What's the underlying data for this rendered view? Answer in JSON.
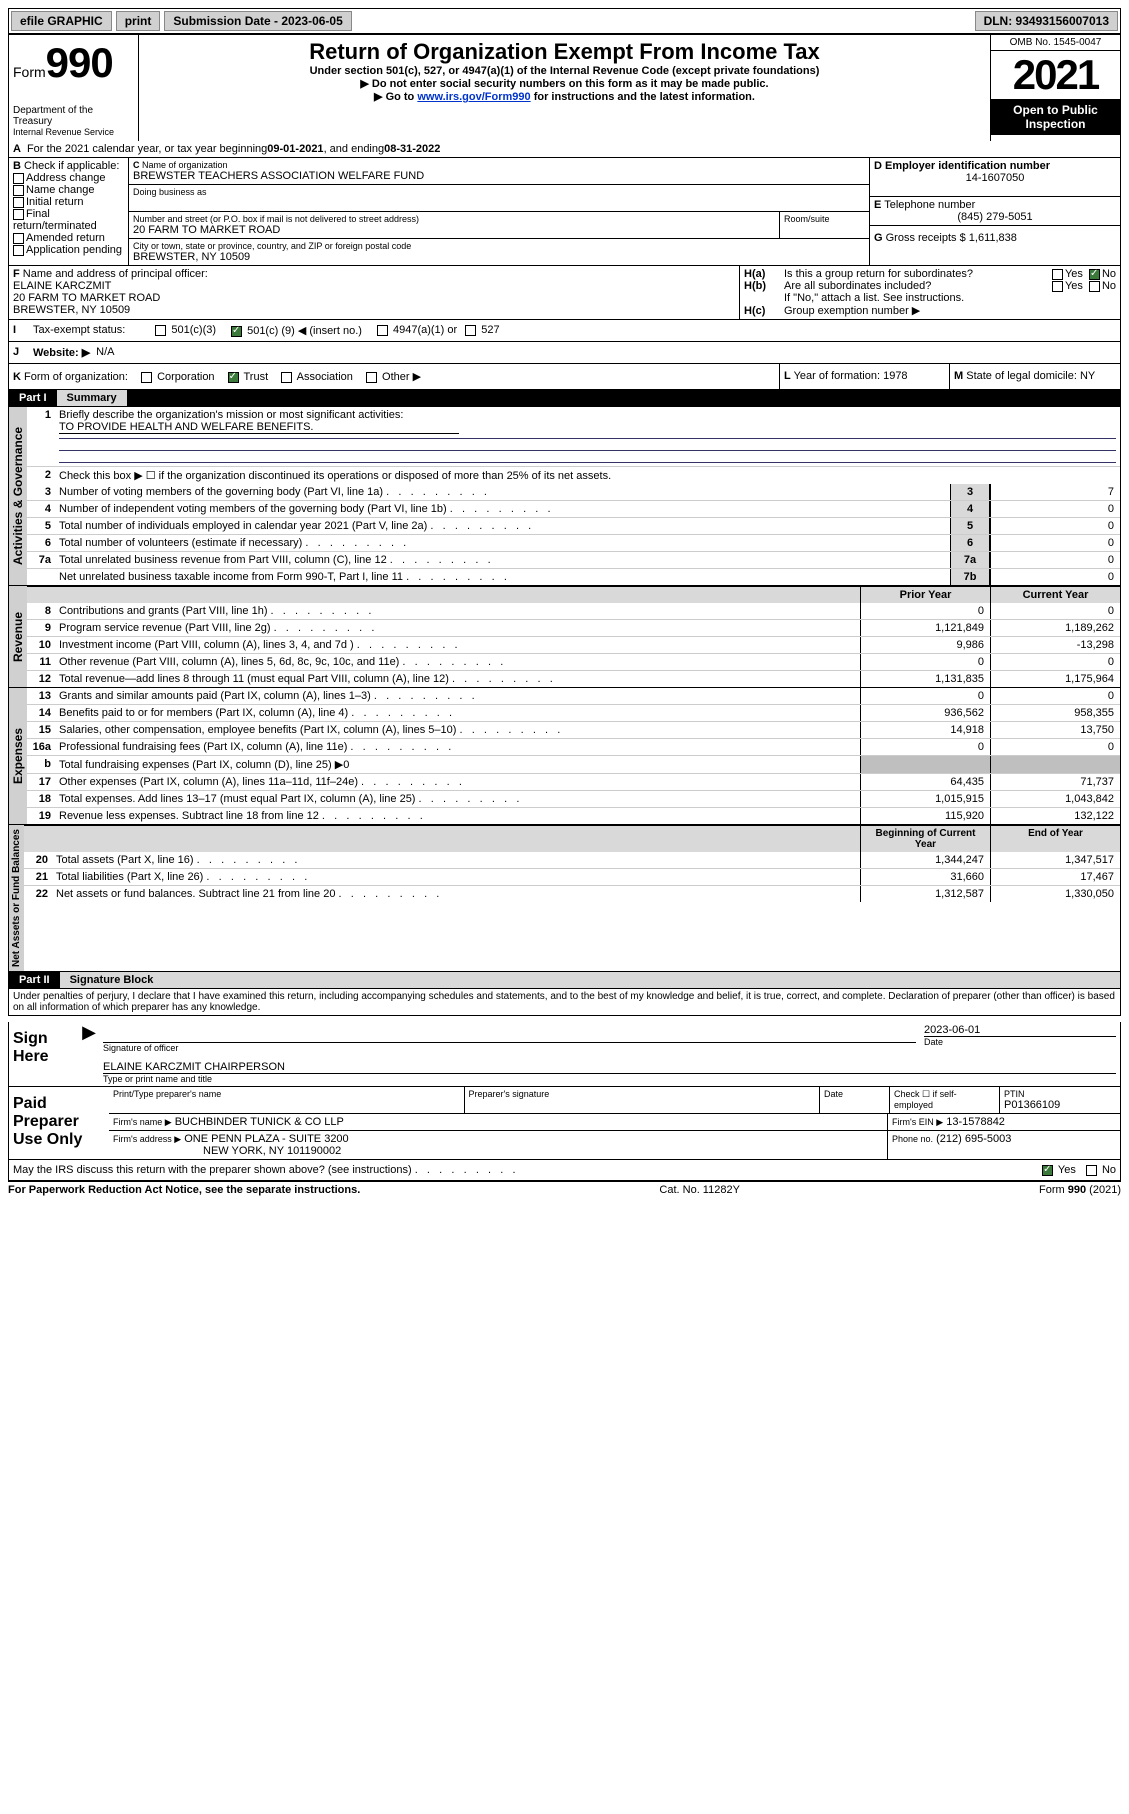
{
  "topbar": {
    "efile": "efile GRAPHIC",
    "print": "print",
    "subdate_label": "Submission Date - 2023-06-05",
    "dln_label": "DLN: 93493156007013"
  },
  "header": {
    "form_label": "Form",
    "form_number": "990",
    "dept": "Department of the Treasury",
    "irs": "Internal Revenue Service",
    "title": "Return of Organization Exempt From Income Tax",
    "sub1": "Under section 501(c), 527, or 4947(a)(1) of the Internal Revenue Code (except private foundations)",
    "sub2": "Do not enter social security numbers on this form as it may be made public.",
    "sub3_pre": "Go to ",
    "sub3_link": "www.irs.gov/Form990",
    "sub3_post": " for instructions and the latest information.",
    "omb": "OMB No. 1545-0047",
    "year": "2021",
    "inspect": "Open to Public Inspection"
  },
  "lineA": {
    "text_pre": "For the 2021 calendar year, or tax year beginning ",
    "begin": "09-01-2021",
    "mid": " , and ending ",
    "end": "08-31-2022"
  },
  "boxB": {
    "label": "Check if applicable:",
    "items": [
      "Address change",
      "Name change",
      "Initial return",
      "Final return/terminated",
      "Amended return",
      "Application pending"
    ]
  },
  "boxC": {
    "label": "Name of organization",
    "name": "BREWSTER TEACHERS ASSOCIATION WELFARE FUND",
    "dba_label": "Doing business as",
    "street_label": "Number and street (or P.O. box if mail is not delivered to street address)",
    "street": "20 FARM TO MARKET ROAD",
    "room_label": "Room/suite",
    "city_label": "City or town, state or province, country, and ZIP or foreign postal code",
    "city": "BREWSTER, NY  10509"
  },
  "boxD": {
    "label": "Employer identification number",
    "ein": "14-1607050"
  },
  "boxE": {
    "label": "Telephone number",
    "phone": "(845) 279-5051"
  },
  "boxG": {
    "label": "Gross receipts $",
    "amount": "1,611,838"
  },
  "boxF": {
    "label": "Name and address of principal officer:",
    "name": "ELAINE KARCZMIT",
    "addr1": "20 FARM TO MARKET ROAD",
    "addr2": "BREWSTER, NY  10509"
  },
  "boxH": {
    "ha_label": "Is this a group return for subordinates?",
    "hb_label": "Are all subordinates included?",
    "hint": "If \"No,\" attach a list. See instructions.",
    "hc_label": "Group exemption number ▶",
    "yes": "Yes",
    "no": "No"
  },
  "lineI": {
    "label": "Tax-exempt status:",
    "c3": "501(c)(3)",
    "cparen_pre": "501(c) (",
    "cparen_mid": "9",
    "cparen_post": ") ◀ (insert no.)",
    "a4947": "4947(a)(1) or",
    "s527": "527"
  },
  "lineJ": {
    "label": "Website: ▶",
    "value": "N/A"
  },
  "lineK": {
    "label": "Form of organization:",
    "corp": "Corporation",
    "trust": "Trust",
    "assoc": "Association",
    "other": "Other ▶"
  },
  "lineL": {
    "label": "Year of formation:",
    "value": "1978"
  },
  "lineM": {
    "label": "State of legal domicile:",
    "value": "NY"
  },
  "partI": {
    "label": "Part I",
    "title": "Summary"
  },
  "summary": {
    "l1_label": "Briefly describe the organization's mission or most significant activities:",
    "l1_text": "TO PROVIDE HEALTH AND WELFARE BENEFITS.",
    "l2_label": "Check this box ▶ ☐ if the organization discontinued its operations or disposed of more than 25% of its net assets.",
    "lines_gov": [
      {
        "n": "3",
        "d": "Number of voting members of the governing body (Part VI, line 1a)",
        "box": "3",
        "v": "7"
      },
      {
        "n": "4",
        "d": "Number of independent voting members of the governing body (Part VI, line 1b)",
        "box": "4",
        "v": "0"
      },
      {
        "n": "5",
        "d": "Total number of individuals employed in calendar year 2021 (Part V, line 2a)",
        "box": "5",
        "v": "0"
      },
      {
        "n": "6",
        "d": "Total number of volunteers (estimate if necessary)",
        "box": "6",
        "v": "0"
      },
      {
        "n": "7a",
        "d": "Total unrelated business revenue from Part VIII, column (C), line 12",
        "box": "7a",
        "v": "0"
      },
      {
        "n": "",
        "d": "Net unrelated business taxable income from Form 990-T, Part I, line 11",
        "box": "7b",
        "v": "0"
      }
    ],
    "col_prior": "Prior Year",
    "col_current": "Current Year",
    "col_begin": "Beginning of Current Year",
    "col_end": "End of Year",
    "revenue": [
      {
        "n": "8",
        "d": "Contributions and grants (Part VIII, line 1h)",
        "p": "0",
        "c": "0"
      },
      {
        "n": "9",
        "d": "Program service revenue (Part VIII, line 2g)",
        "p": "1,121,849",
        "c": "1,189,262"
      },
      {
        "n": "10",
        "d": "Investment income (Part VIII, column (A), lines 3, 4, and 7d )",
        "p": "9,986",
        "c": "-13,298"
      },
      {
        "n": "11",
        "d": "Other revenue (Part VIII, column (A), lines 5, 6d, 8c, 9c, 10c, and 11e)",
        "p": "0",
        "c": "0"
      },
      {
        "n": "12",
        "d": "Total revenue—add lines 8 through 11 (must equal Part VIII, column (A), line 12)",
        "p": "1,131,835",
        "c": "1,175,964"
      }
    ],
    "expenses": [
      {
        "n": "13",
        "d": "Grants and similar amounts paid (Part IX, column (A), lines 1–3)",
        "p": "0",
        "c": "0"
      },
      {
        "n": "14",
        "d": "Benefits paid to or for members (Part IX, column (A), line 4)",
        "p": "936,562",
        "c": "958,355"
      },
      {
        "n": "15",
        "d": "Salaries, other compensation, employee benefits (Part IX, column (A), lines 5–10)",
        "p": "14,918",
        "c": "13,750"
      },
      {
        "n": "16a",
        "d": "Professional fundraising fees (Part IX, column (A), line 11e)",
        "p": "0",
        "c": "0"
      },
      {
        "n": "b",
        "d": "Total fundraising expenses (Part IX, column (D), line 25) ▶0",
        "p": "",
        "c": "",
        "shaded": true
      },
      {
        "n": "17",
        "d": "Other expenses (Part IX, column (A), lines 11a–11d, 11f–24e)",
        "p": "64,435",
        "c": "71,737"
      },
      {
        "n": "18",
        "d": "Total expenses. Add lines 13–17 (must equal Part IX, column (A), line 25)",
        "p": "1,015,915",
        "c": "1,043,842"
      },
      {
        "n": "19",
        "d": "Revenue less expenses. Subtract line 18 from line 12",
        "p": "115,920",
        "c": "132,122"
      }
    ],
    "netassets": [
      {
        "n": "20",
        "d": "Total assets (Part X, line 16)",
        "p": "1,344,247",
        "c": "1,347,517"
      },
      {
        "n": "21",
        "d": "Total liabilities (Part X, line 26)",
        "p": "31,660",
        "c": "17,467"
      },
      {
        "n": "22",
        "d": "Net assets or fund balances. Subtract line 21 from line 20",
        "p": "1,312,587",
        "c": "1,330,050"
      }
    ]
  },
  "sections": {
    "gov": "Activities & Governance",
    "rev": "Revenue",
    "exp": "Expenses",
    "net": "Net Assets or Fund Balances"
  },
  "partII": {
    "label": "Part II",
    "title": "Signature Block"
  },
  "penalties": "Under penalties of perjury, I declare that I have examined this return, including accompanying schedules and statements, and to the best of my knowledge and belief, it is true, correct, and complete. Declaration of preparer (other than officer) is based on all information of which preparer has any knowledge.",
  "sign": {
    "here": "Sign Here",
    "sig_officer": "Signature of officer",
    "date_label": "Date",
    "date": "2023-06-01",
    "name": "ELAINE KARCZMIT CHAIRPERSON",
    "typeprint": "Type or print name and title"
  },
  "paid": {
    "label": "Paid Preparer Use Only",
    "col_name": "Print/Type preparer's name",
    "col_sig": "Preparer's signature",
    "col_date": "Date",
    "check_label": "Check ☐ if self-employed",
    "ptin_label": "PTIN",
    "ptin": "P01366109",
    "firm_label": "Firm's name    ▶",
    "firm": "BUCHBINDER TUNICK & CO LLP",
    "ein_label": "Firm's EIN ▶",
    "ein": "13-1578842",
    "addr_label": "Firm's address ▶",
    "addr1": "ONE PENN PLAZA - SUITE 3200",
    "addr2": "NEW YORK, NY  101190002",
    "phone_label": "Phone no.",
    "phone": "(212) 695-5003"
  },
  "discuss": {
    "q": "May the IRS discuss this return with the preparer shown above? (see instructions)",
    "yes": "Yes",
    "no": "No"
  },
  "footer": {
    "left": "For Paperwork Reduction Act Notice, see the separate instructions.",
    "mid": "Cat. No. 11282Y",
    "right": "Form 990 (2021)"
  },
  "b_letter": "B",
  "c_letter": "C",
  "d_letter": "D",
  "e_letter": "E",
  "f_letter": "F",
  "g_letter": "G",
  "ha": "H(a)",
  "hb": "H(b)",
  "hc": "H(c)",
  "i_letter": "I",
  "j_letter": "J",
  "k_letter": "K",
  "l_letter": "L",
  "m_letter": "M",
  "a_letter": "A"
}
